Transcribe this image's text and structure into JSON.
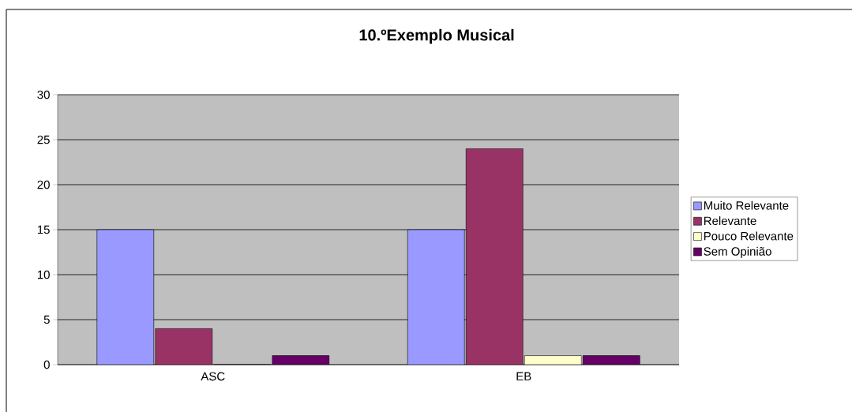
{
  "chart_data": {
    "type": "bar",
    "title": "10.ºExemplo Musical",
    "categories": [
      "ASC",
      "EB"
    ],
    "series": [
      {
        "name": "Muito Relevante",
        "color": "#9999ff",
        "values": [
          15,
          15
        ]
      },
      {
        "name": "Relevante",
        "color": "#993366",
        "values": [
          4,
          24
        ]
      },
      {
        "name": "Pouco Relevante",
        "color": "#ffffcc",
        "values": [
          0,
          1
        ]
      },
      {
        "name": "Sem Opinião",
        "color": "#660066",
        "values": [
          1,
          1
        ]
      }
    ],
    "ylim": [
      0,
      30
    ],
    "yticks": [
      0,
      5,
      10,
      15,
      20,
      25,
      30
    ],
    "grid": "y",
    "legend": "right"
  }
}
